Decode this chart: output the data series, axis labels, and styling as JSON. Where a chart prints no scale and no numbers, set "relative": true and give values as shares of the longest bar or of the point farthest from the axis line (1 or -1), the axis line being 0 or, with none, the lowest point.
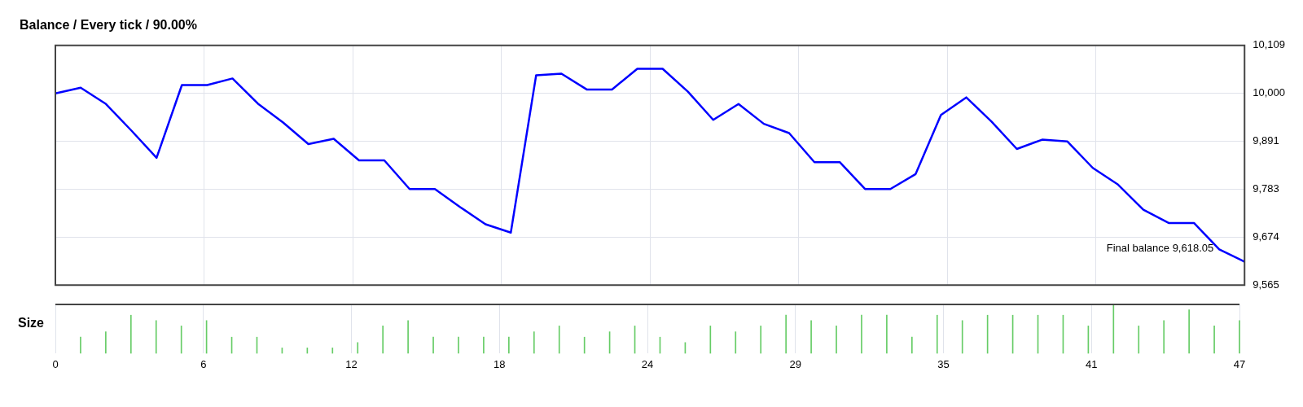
{
  "chart_data": [
    {
      "type": "line",
      "title": "Balance / Every tick / 90.00%",
      "x": [
        0,
        1,
        2,
        3,
        4,
        5,
        6,
        7,
        8,
        9,
        10,
        11,
        12,
        13,
        14,
        15,
        16,
        17,
        18,
        19,
        20,
        21,
        22,
        23,
        24,
        25,
        26,
        27,
        28,
        29,
        30,
        31,
        32,
        33,
        34,
        35,
        36,
        37,
        38,
        39,
        40,
        41,
        42,
        43,
        44,
        45,
        46,
        47
      ],
      "series": [
        {
          "color": "#0000ff",
          "values": [
            10000,
            10013,
            9976,
            9916,
            9854,
            10019,
            10019,
            10034,
            9977,
            9934,
            9885,
            9897,
            9848,
            9848,
            9783,
            9783,
            9742,
            9703,
            9684,
            10041,
            10045,
            10009,
            10009,
            10056,
            10056,
            10004,
            9940,
            9976,
            9931,
            9910,
            9844,
            9844,
            9783,
            9783,
            9817,
            9951,
            9991,
            9936,
            9874,
            9895,
            9891,
            9831,
            9793,
            9736,
            9706,
            9706,
            9646,
            9618
          ]
        }
      ],
      "xlim": [
        0,
        47
      ],
      "xticks": [
        {
          "value": 0,
          "label": null
        },
        {
          "value": 5.875,
          "label": null
        },
        {
          "value": 11.75,
          "label": null
        },
        {
          "value": 17.625,
          "label": null
        },
        {
          "value": 23.5,
          "label": null
        },
        {
          "value": 29.375,
          "label": null
        },
        {
          "value": 35.25,
          "label": null
        },
        {
          "value": 41.125,
          "label": null
        },
        {
          "value": 47,
          "label": null
        }
      ],
      "ylim": [
        9565,
        10109
      ],
      "yticks": [
        {
          "value": 9565,
          "label": "9,565"
        },
        {
          "value": 9673.8,
          "label": "9,674"
        },
        {
          "value": 9782.6,
          "label": "9,783"
        },
        {
          "value": 9891.4,
          "label": "9,891"
        },
        {
          "value": 10000.2,
          "label": "10,000"
        },
        {
          "value": 10109,
          "label": "10,109"
        }
      ],
      "grid": true,
      "tick_labels": "y",
      "annotations": [
        "Final balance 9,618.05"
      ]
    },
    {
      "type": "bar",
      "title": "Size",
      "relative": true,
      "color": "#66cc66",
      "x": [
        1,
        2,
        3,
        4,
        5,
        6,
        7,
        8,
        9,
        10,
        11,
        12,
        13,
        14,
        15,
        16,
        17,
        18,
        19,
        20,
        21,
        22,
        23,
        24,
        25,
        26,
        27,
        28,
        29,
        30,
        31,
        32,
        33,
        34,
        35,
        36,
        37,
        38,
        39,
        40,
        41,
        42,
        43,
        44,
        45,
        46,
        47
      ],
      "values": [
        0.33,
        0.44,
        0.78,
        0.67,
        0.56,
        0.67,
        0.33,
        0.33,
        0.11,
        0.11,
        0.11,
        0.22,
        0.56,
        0.67,
        0.33,
        0.33,
        0.33,
        0.33,
        0.44,
        0.56,
        0.33,
        0.44,
        0.56,
        0.33,
        0.22,
        0.56,
        0.44,
        0.56,
        0.78,
        0.67,
        0.56,
        0.78,
        0.78,
        0.33,
        0.78,
        0.67,
        0.78,
        0.78,
        0.78,
        0.78,
        0.56,
        1,
        0.56,
        0.67,
        0.89,
        0.56,
        0.67
      ],
      "xlim": [
        0,
        47
      ],
      "xticks": [
        0,
        {
          "value": 5.875,
          "label": "6"
        },
        {
          "value": 11.75,
          "label": "12"
        },
        {
          "value": 17.625,
          "label": "18"
        },
        {
          "value": 23.5,
          "label": "24"
        },
        {
          "value": 29.375,
          "label": "29"
        },
        {
          "value": 35.25,
          "label": "35"
        },
        {
          "value": 41.125,
          "label": "41"
        },
        47
      ],
      "grid": "x"
    }
  ]
}
